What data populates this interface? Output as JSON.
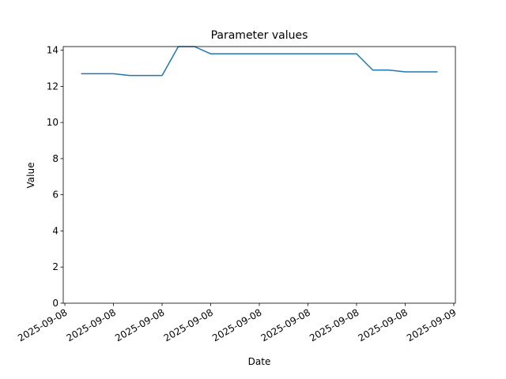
{
  "chart_data": {
    "type": "line",
    "title": "Parameter values",
    "x_label": "Date",
    "y_label": "Value",
    "x": [
      1,
      2,
      3,
      4,
      5,
      6,
      7,
      8,
      9,
      10,
      11,
      12,
      13,
      14,
      15,
      16,
      17,
      18,
      19,
      20,
      21,
      22,
      23
    ],
    "series": [
      {
        "name": "Value",
        "color": "#1f77b4",
        "values": [
          12.7,
          12.7,
          12.7,
          12.6,
          12.6,
          12.6,
          14.2,
          14.2,
          13.8,
          13.8,
          13.8,
          13.8,
          13.8,
          13.8,
          13.8,
          13.8,
          13.8,
          13.8,
          12.9,
          12.9,
          12.8,
          12.8,
          12.8
        ]
      }
    ],
    "xlim": [
      -0.1,
      24.1
    ],
    "xticks": [
      {
        "value": 0,
        "label": "2025-09-08"
      },
      {
        "value": 3,
        "label": "2025-09-08"
      },
      {
        "value": 6,
        "label": "2025-09-08"
      },
      {
        "value": 9,
        "label": "2025-09-08"
      },
      {
        "value": 12,
        "label": "2025-09-08"
      },
      {
        "value": 15,
        "label": "2025-09-08"
      },
      {
        "value": 18,
        "label": "2025-09-08"
      },
      {
        "value": 21,
        "label": "2025-09-08"
      },
      {
        "value": 24,
        "label": "2025-09-09"
      }
    ],
    "ylim": [
      0,
      14.2
    ],
    "yticks": [
      0,
      2,
      4,
      6,
      8,
      10,
      12,
      14
    ],
    "grid": false
  }
}
